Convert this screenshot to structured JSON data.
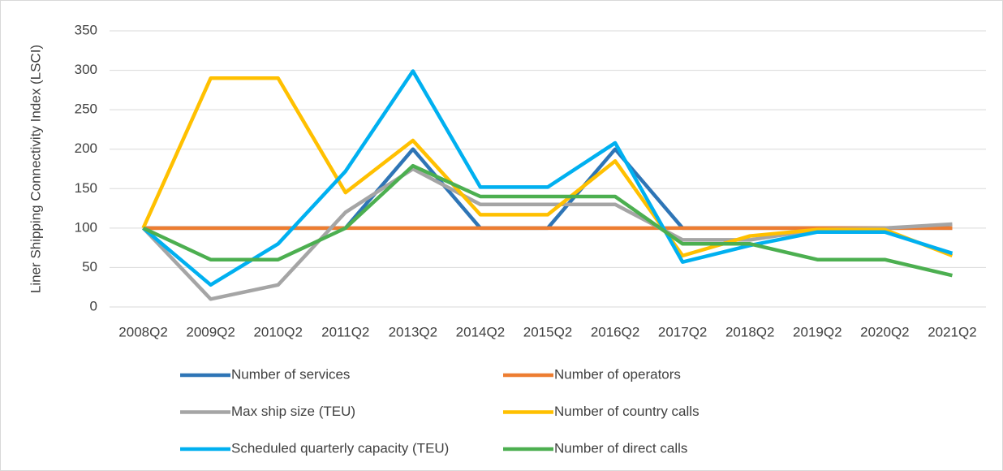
{
  "chart_data": {
    "type": "line",
    "y_label": "Liner Shipping Connectivity Index (LSCI)",
    "categories": [
      "2008Q2",
      "2009Q2",
      "2010Q2",
      "2011Q2",
      "2013Q2",
      "2014Q2",
      "2015Q2",
      "2016Q2",
      "2017Q2",
      "2018Q2",
      "2019Q2",
      "2020Q2",
      "2021Q2"
    ],
    "ylim": [
      0,
      350
    ],
    "yticks": [
      0,
      50,
      100,
      150,
      200,
      250,
      300,
      350
    ],
    "grid": true,
    "series": [
      {
        "name": "Number of services",
        "color": "#2e75b6",
        "values": [
          100,
          100,
          100,
          100,
          200,
          100,
          100,
          200,
          100,
          100,
          100,
          100,
          100
        ]
      },
      {
        "name": "Number of operators",
        "color": "#ed7d31",
        "values": [
          100,
          100,
          100,
          100,
          100,
          100,
          100,
          100,
          100,
          100,
          100,
          100,
          100
        ]
      },
      {
        "name": "Max ship size (TEU)",
        "color": "#a5a5a5",
        "values": [
          100,
          10,
          28,
          120,
          175,
          130,
          130,
          130,
          85,
          85,
          98,
          100,
          105
        ]
      },
      {
        "name": "Number of country calls",
        "color": "#ffc000",
        "values": [
          100,
          290,
          290,
          145,
          211,
          117,
          117,
          185,
          65,
          90,
          98,
          98,
          65
        ]
      },
      {
        "name": "Scheduled quarterly capacity (TEU)",
        "color": "#00b0f0",
        "values": [
          100,
          28,
          80,
          172,
          299,
          152,
          152,
          208,
          57,
          78,
          95,
          95,
          68
        ]
      },
      {
        "name": "Number of direct calls",
        "color": "#4caf50",
        "values": [
          100,
          60,
          60,
          100,
          179,
          140,
          140,
          140,
          80,
          80,
          60,
          60,
          40
        ]
      }
    ]
  }
}
